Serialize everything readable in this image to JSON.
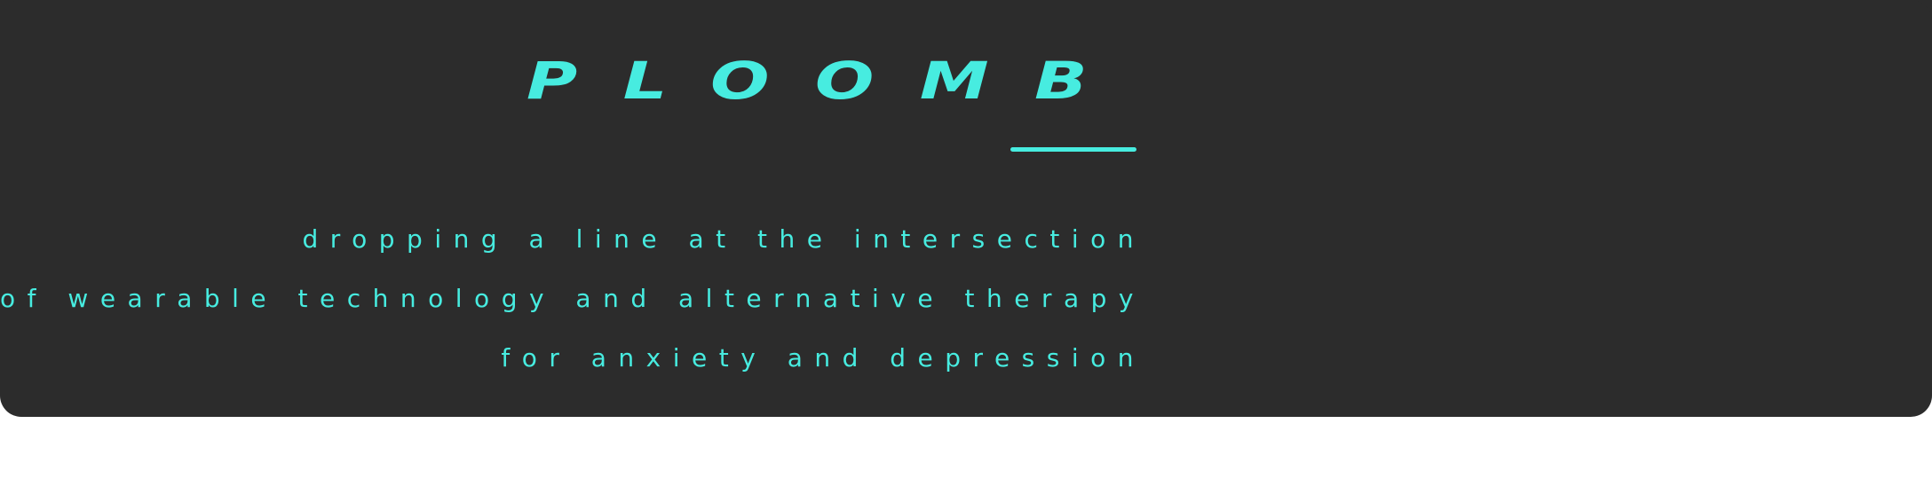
{
  "brand": {
    "title": "PLOOMB",
    "accent_color": "#47ece0",
    "background_color": "#2c2c2c"
  },
  "tagline": {
    "lines": [
      "dropping a line at the intersection",
      "of wearable technology and alternative therapy",
      "for anxiety and depression"
    ]
  }
}
